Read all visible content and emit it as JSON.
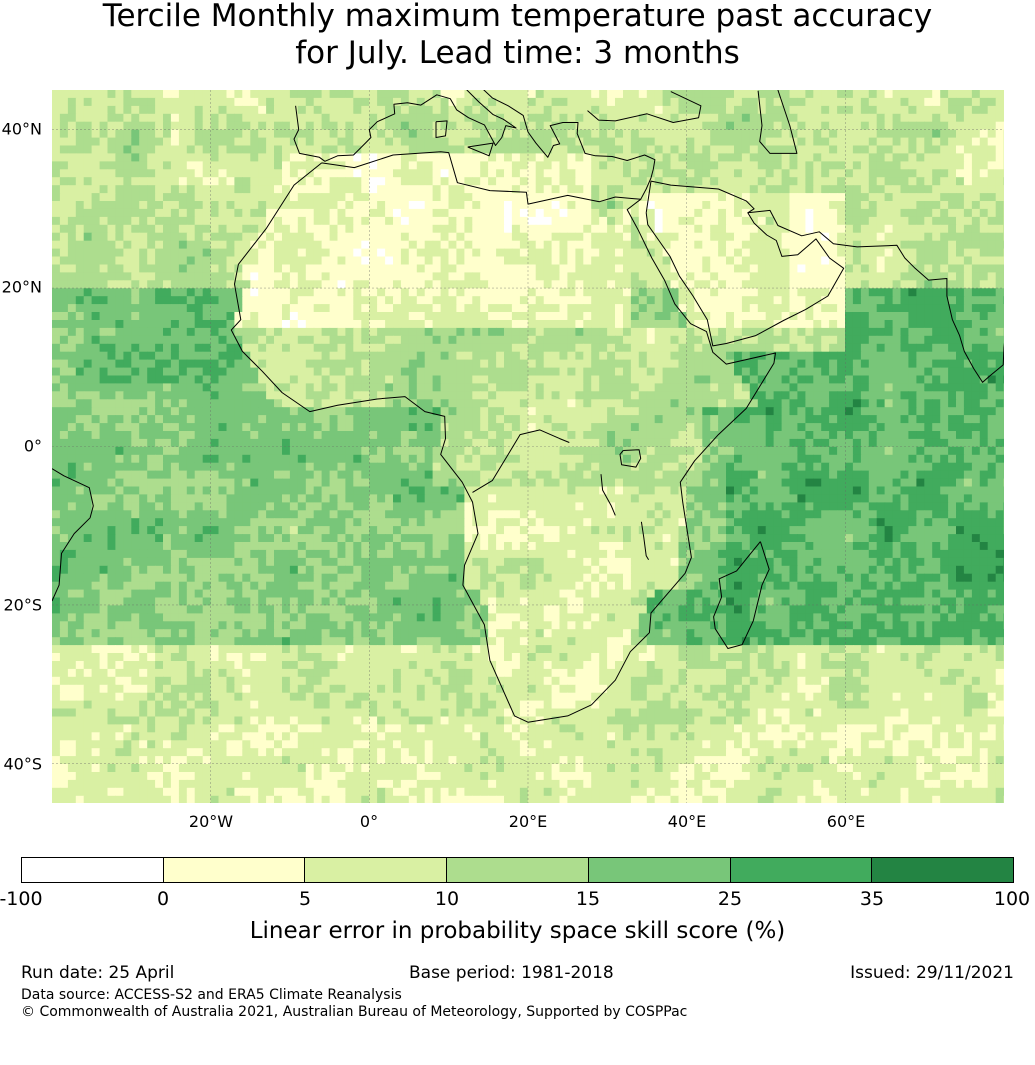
{
  "title": {
    "line1": "Tercile Monthly maximum temperature past accuracy",
    "line2": "for July. Lead time: 3 months"
  },
  "map": {
    "lat_labels": [
      "40°N",
      "20°N",
      "0°",
      "20°S",
      "40°S"
    ],
    "lon_labels": [
      "20°W",
      "0°",
      "20°E",
      "40°E",
      "60°E"
    ],
    "extent": {
      "lon_min": -40,
      "lon_max": 80,
      "lat_min": -45,
      "lat_max": 45
    },
    "gridlines": true
  },
  "colorbar": {
    "ticks": [
      "-100",
      "0",
      "5",
      "10",
      "15",
      "25",
      "35",
      "100"
    ],
    "colors": [
      "#ffffff",
      "#ffffcc",
      "#d9f0a3",
      "#addd8e",
      "#78c679",
      "#41ab5d",
      "#238443"
    ],
    "label": "Linear error in probability space skill score (%)"
  },
  "footer": {
    "run_date": "Run date: 25 April",
    "base_period": "Base period: 1981-2018",
    "issued": "Issued: 29/11/2021",
    "data_source": "Data source: ACCESS-S2 and ERA5 Climate Reanalysis",
    "copyright": "© Commonwealth of Australia 2021, Australian Bureau of Meteorology, Supported by COSPPac"
  }
}
